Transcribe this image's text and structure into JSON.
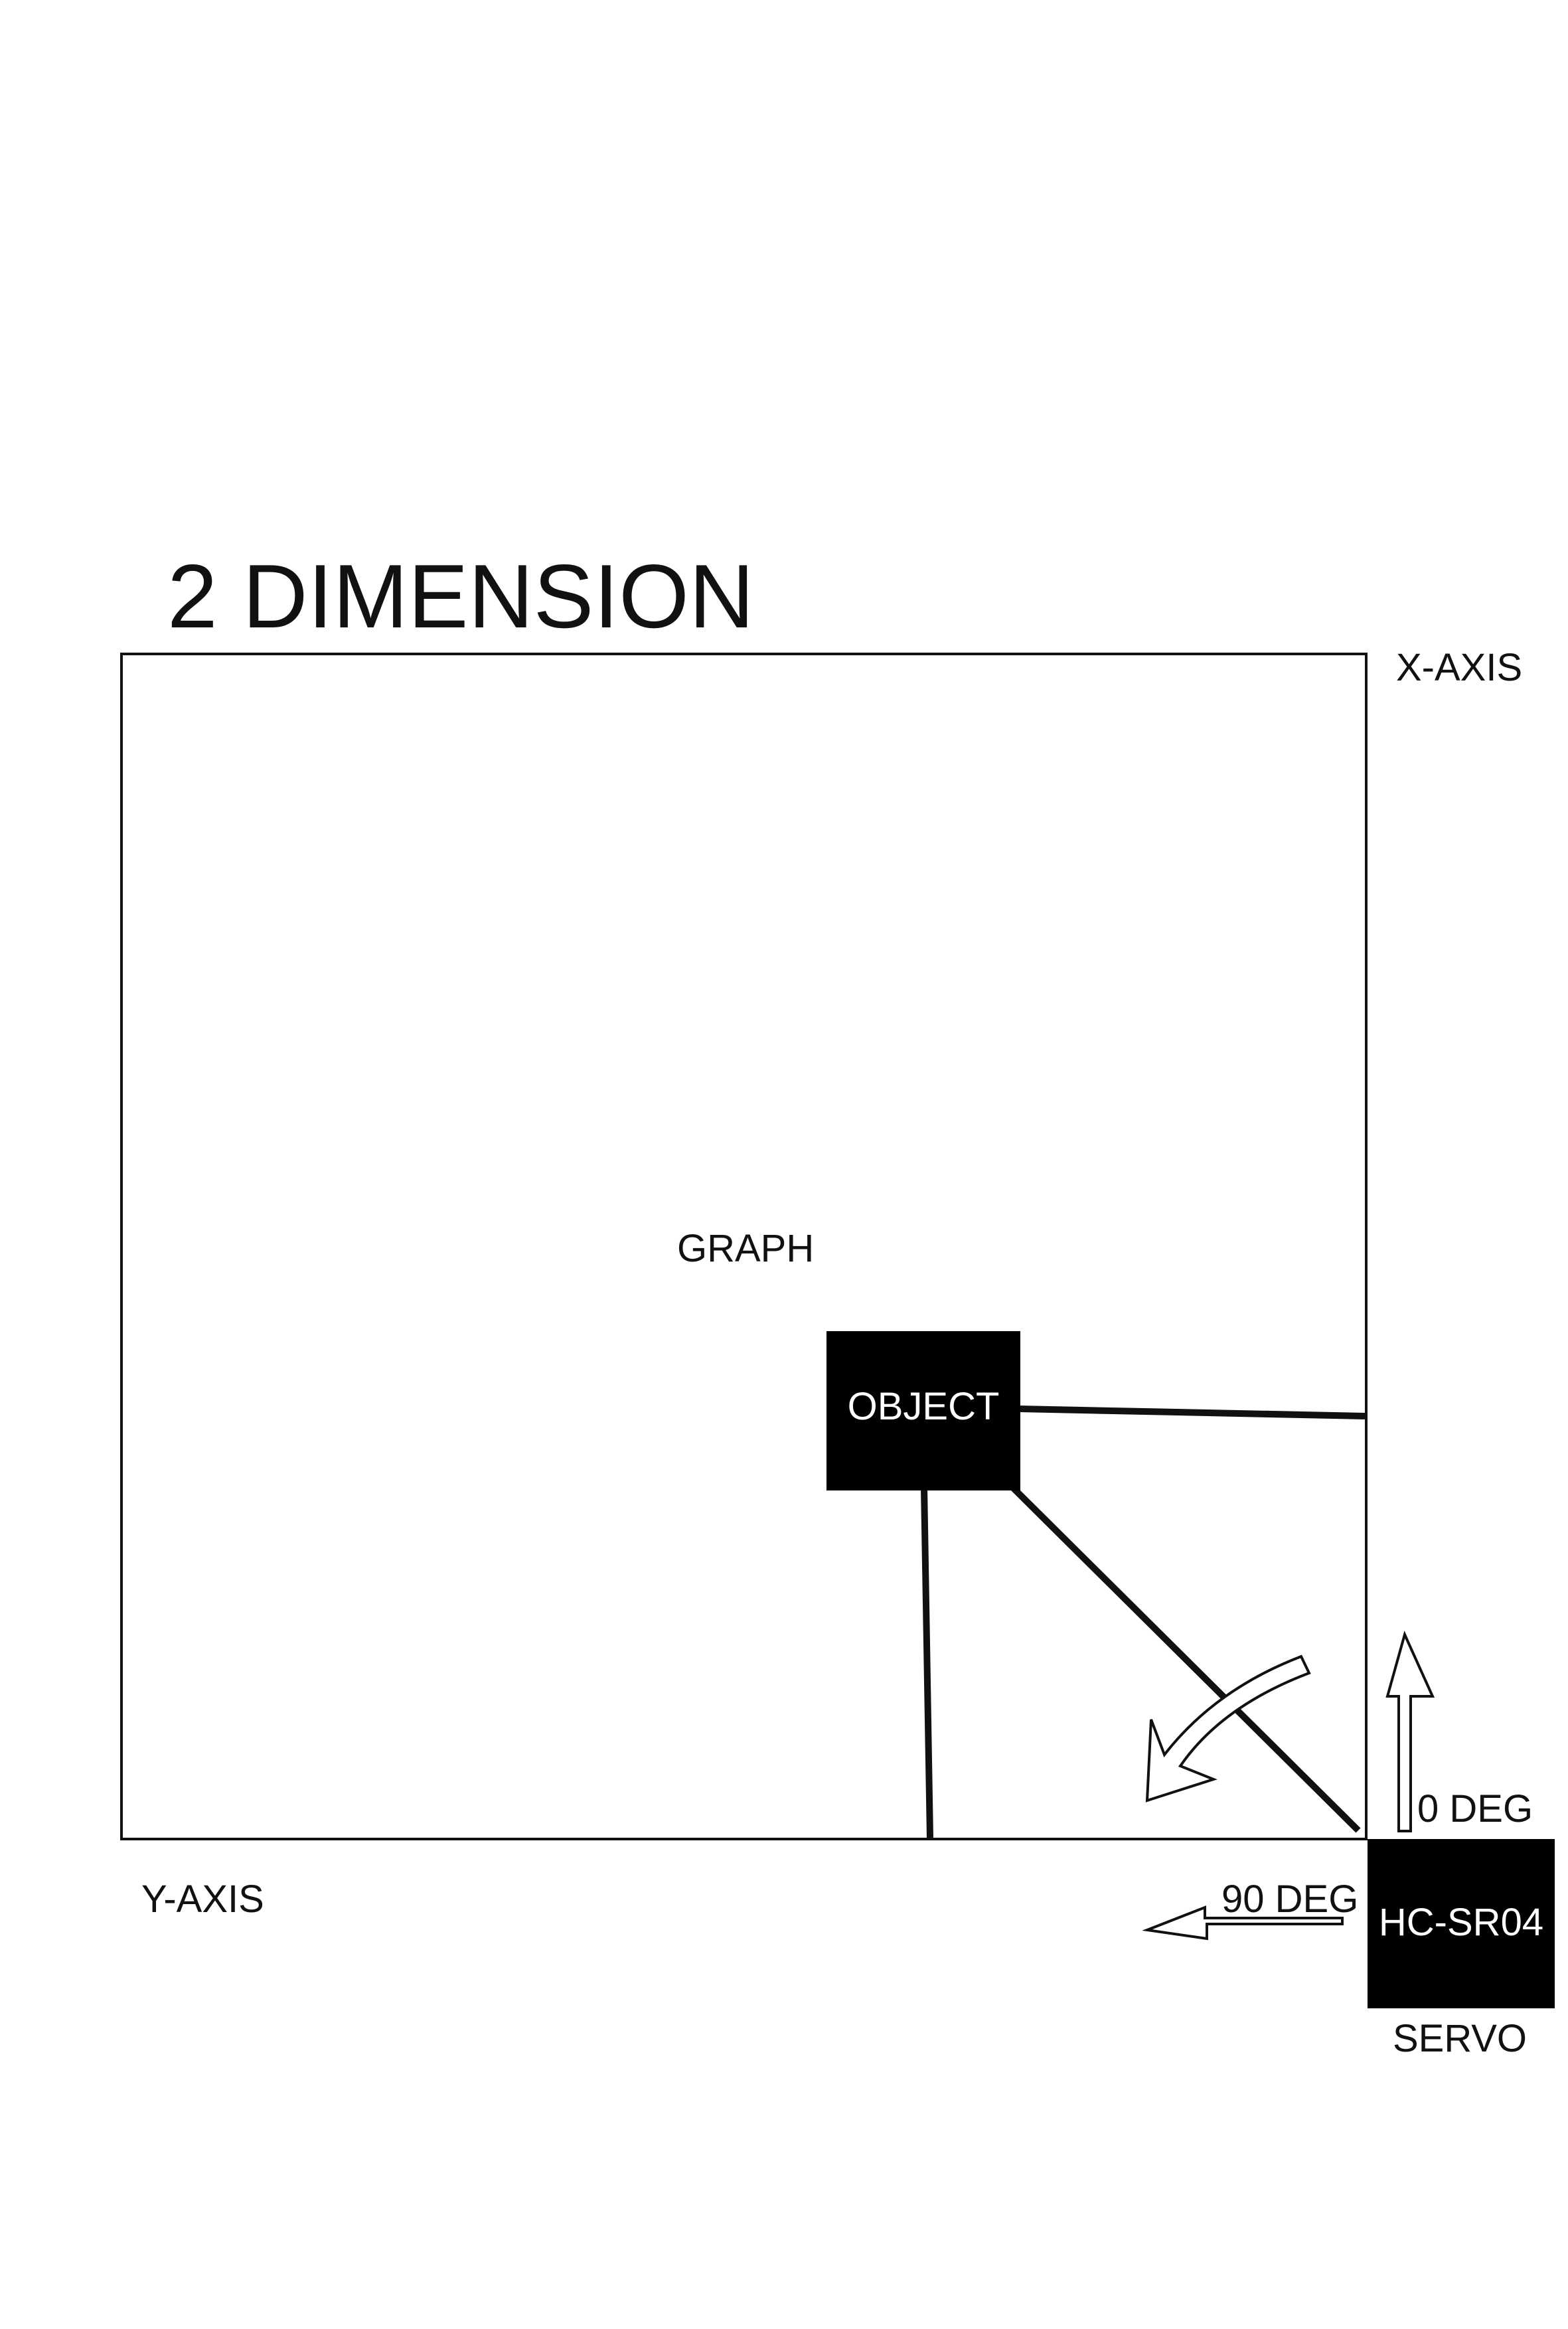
{
  "title": "2 DIMENSION",
  "labels": {
    "x_axis": "X-AXIS",
    "y_axis": "Y-AXIS",
    "graph": "GRAPH",
    "object": "OBJECT",
    "sensor": "HC-SR04",
    "servo": "SERVO",
    "angle_0": "0 DEG",
    "angle_90": "90 DEG"
  },
  "colors": {
    "ink": "#111111",
    "background": "#ffffff",
    "block_fill": "#000000",
    "block_text": "#ffffff"
  }
}
